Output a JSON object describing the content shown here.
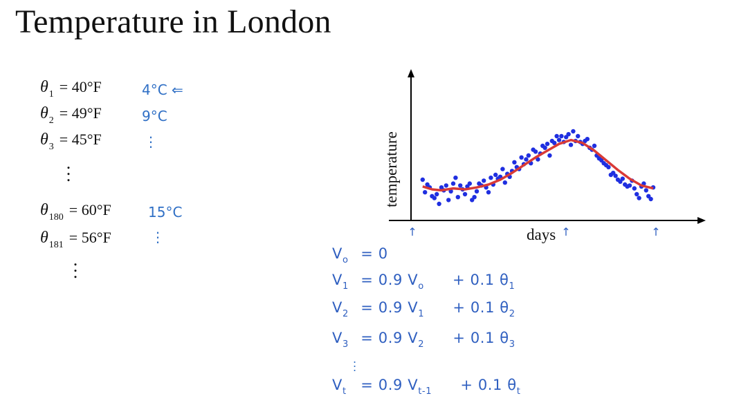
{
  "slide": {
    "title": "Temperature in London"
  },
  "equations": [
    {
      "symbol": "θ",
      "sub": "1",
      "value": "= 40°F",
      "note": "4°C ⇐"
    },
    {
      "symbol": "θ",
      "sub": "2",
      "value": "= 49°F",
      "note": "9°C"
    },
    {
      "symbol": "θ",
      "sub": "3",
      "value": "= 45°F",
      "note": "⋮"
    },
    {
      "symbol": "θ",
      "sub": "180",
      "value": "= 60°F",
      "note": "15°C"
    },
    {
      "symbol": "θ",
      "sub": "181",
      "value": "= 56°F",
      "note": "⋮"
    }
  ],
  "handwriting": {
    "lines": [
      {
        "lhs": "V",
        "lsub": "o",
        "rest": "= 0"
      },
      {
        "lhs": "V",
        "lsub": "1",
        "rest": "= 0.9 V",
        "rsub": "o",
        "tail": "+ 0.1 θ",
        "tsub": "1"
      },
      {
        "lhs": "V",
        "lsub": "2",
        "rest": "= 0.9 V",
        "rsub": "1",
        "tail": "+ 0.1 θ",
        "tsub": "2"
      },
      {
        "lhs": "V",
        "lsub": "3",
        "rest": "= 0.9 V",
        "rsub": "2",
        "tail": "+ 0.1 θ",
        "tsub": "3"
      },
      {
        "lhs": "V",
        "lsub": "t",
        "rest": "= 0.9 V",
        "rsub": "t-1",
        "tail": "+ 0.1 θ",
        "tsub": "t"
      }
    ]
  },
  "colors": {
    "points": "#1f2fe0",
    "smooth": "#d93a36",
    "ink": "#2f5fc0"
  },
  "chart_data": {
    "type": "scatter",
    "xlabel": "days",
    "ylabel": "temperature",
    "xlim": [
      0,
      100
    ],
    "ylim": [
      0,
      100
    ],
    "grid": false,
    "series": [
      {
        "values": [
          [
            2,
            35
          ],
          [
            3,
            22
          ],
          [
            4,
            30
          ],
          [
            5,
            27
          ],
          [
            6,
            18
          ],
          [
            7,
            16
          ],
          [
            8,
            20
          ],
          [
            9,
            10
          ],
          [
            10,
            27
          ],
          [
            11,
            24
          ],
          [
            12,
            29
          ],
          [
            13,
            14
          ],
          [
            14,
            23
          ],
          [
            15,
            31
          ],
          [
            16,
            37
          ],
          [
            17,
            17
          ],
          [
            18,
            29
          ],
          [
            19,
            25
          ],
          [
            20,
            20
          ],
          [
            21,
            28
          ],
          [
            22,
            31
          ],
          [
            23,
            14
          ],
          [
            24,
            17
          ],
          [
            25,
            23
          ],
          [
            26,
            31
          ],
          [
            27,
            29
          ],
          [
            28,
            34
          ],
          [
            29,
            27
          ],
          [
            30,
            22
          ],
          [
            31,
            37
          ],
          [
            32,
            30
          ],
          [
            33,
            40
          ],
          [
            34,
            36
          ],
          [
            35,
            38
          ],
          [
            36,
            46
          ],
          [
            37,
            32
          ],
          [
            38,
            41
          ],
          [
            39,
            38
          ],
          [
            40,
            44
          ],
          [
            41,
            53
          ],
          [
            42,
            48
          ],
          [
            43,
            46
          ],
          [
            44,
            58
          ],
          [
            45,
            51
          ],
          [
            46,
            56
          ],
          [
            47,
            60
          ],
          [
            48,
            52
          ],
          [
            49,
            66
          ],
          [
            50,
            64
          ],
          [
            51,
            56
          ],
          [
            52,
            62
          ],
          [
            53,
            70
          ],
          [
            54,
            68
          ],
          [
            55,
            72
          ],
          [
            56,
            60
          ],
          [
            57,
            75
          ],
          [
            58,
            73
          ],
          [
            59,
            80
          ],
          [
            60,
            76
          ],
          [
            61,
            80
          ],
          [
            62,
            74
          ],
          [
            63,
            79
          ],
          [
            64,
            82
          ],
          [
            65,
            71
          ],
          [
            66,
            85
          ],
          [
            67,
            75
          ],
          [
            68,
            80
          ],
          [
            69,
            74
          ],
          [
            70,
            72
          ],
          [
            71,
            75
          ],
          [
            72,
            77
          ],
          [
            73,
            68
          ],
          [
            74,
            66
          ],
          [
            75,
            70
          ],
          [
            76,
            60
          ],
          [
            77,
            57
          ],
          [
            78,
            55
          ],
          [
            79,
            52
          ],
          [
            80,
            50
          ],
          [
            81,
            48
          ],
          [
            82,
            40
          ],
          [
            83,
            42
          ],
          [
            84,
            39
          ],
          [
            85,
            35
          ],
          [
            86,
            33
          ],
          [
            87,
            36
          ],
          [
            88,
            30
          ],
          [
            89,
            28
          ],
          [
            90,
            29
          ],
          [
            91,
            34
          ],
          [
            92,
            26
          ],
          [
            93,
            20
          ],
          [
            94,
            16
          ],
          [
            95,
            28
          ],
          [
            96,
            31
          ],
          [
            97,
            24
          ],
          [
            98,
            18
          ],
          [
            99,
            15
          ],
          [
            100,
            27
          ]
        ]
      },
      {
        "values": [
          [
            2,
            28
          ],
          [
            6,
            25
          ],
          [
            10,
            24
          ],
          [
            15,
            26
          ],
          [
            20,
            25
          ],
          [
            25,
            27
          ],
          [
            30,
            30
          ],
          [
            35,
            35
          ],
          [
            40,
            42
          ],
          [
            45,
            50
          ],
          [
            50,
            58
          ],
          [
            55,
            65
          ],
          [
            60,
            72
          ],
          [
            65,
            76
          ],
          [
            70,
            73
          ],
          [
            75,
            65
          ],
          [
            80,
            55
          ],
          [
            85,
            45
          ],
          [
            90,
            36
          ],
          [
            95,
            29
          ],
          [
            100,
            26
          ]
        ]
      }
    ],
    "annotations": [
      "↑",
      "↑",
      "↑"
    ]
  }
}
